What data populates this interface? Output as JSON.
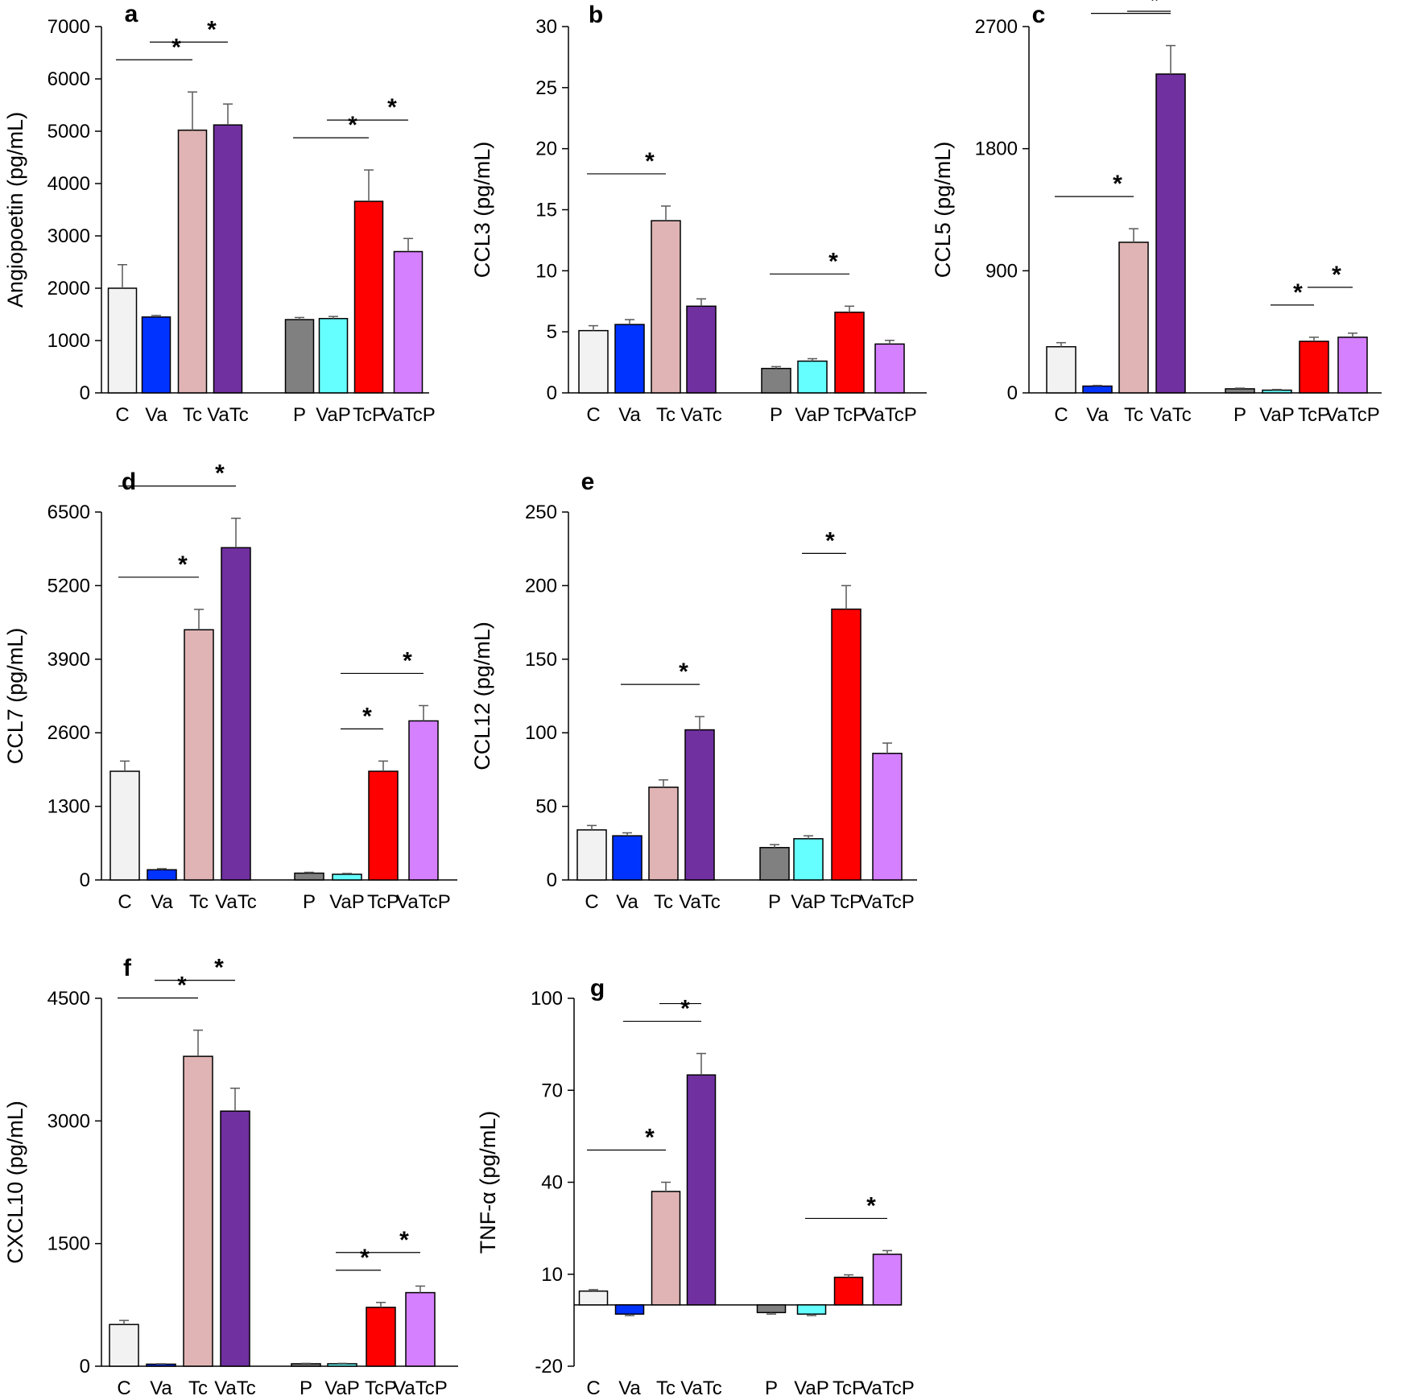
{
  "chart_data": [
    {
      "type": "bar",
      "panel": "a",
      "ylabel": "Angiopoetin (pg/mL)",
      "ylim": [
        0,
        7000
      ],
      "yticks": [
        0,
        1000,
        2000,
        3000,
        4000,
        5000,
        6000,
        7000
      ],
      "categories": [
        "C",
        "Va",
        "Tc",
        "VaTc",
        "P",
        "VaP",
        "TcP",
        "VaTcP"
      ],
      "values": [
        2000,
        1450,
        5020,
        5120,
        1400,
        1420,
        3660,
        2700
      ],
      "errors": [
        450,
        30,
        730,
        400,
        40,
        40,
        600,
        250
      ],
      "significance": [
        {
          "from": 0,
          "to": 2,
          "star": "*"
        },
        {
          "from": 1,
          "to": 3,
          "star": "*"
        },
        {
          "from": 4,
          "to": 6,
          "star": "*"
        },
        {
          "from": 5,
          "to": 7,
          "star": "*"
        }
      ]
    },
    {
      "type": "bar",
      "panel": "b",
      "ylabel": "CCL3 (pg/mL)",
      "ylim": [
        0,
        30
      ],
      "yticks": [
        0,
        5,
        10,
        15,
        20,
        25,
        30
      ],
      "categories": [
        "C",
        "Va",
        "Tc",
        "VaTc",
        "P",
        "VaP",
        "TcP",
        "VaTcP"
      ],
      "values": [
        5.1,
        5.6,
        14.1,
        7.1,
        2.0,
        2.6,
        6.6,
        4.0
      ],
      "errors": [
        0.4,
        0.4,
        1.2,
        0.6,
        0.15,
        0.2,
        0.5,
        0.3
      ],
      "significance": [
        {
          "from": 0,
          "to": 2,
          "star": "*"
        },
        {
          "from": 4,
          "to": 6,
          "star": "*"
        }
      ]
    },
    {
      "type": "bar",
      "panel": "c",
      "ylabel": "CCL5 (pg/mL)",
      "ylim": [
        0,
        2700
      ],
      "yticks": [
        0,
        900,
        1800,
        2700
      ],
      "categories": [
        "C",
        "Va",
        "Tc",
        "VaTc",
        "P",
        "VaP",
        "TcP",
        "VaTcP"
      ],
      "values": [
        340,
        50,
        1110,
        2350,
        30,
        20,
        380,
        410
      ],
      "errors": [
        30,
        5,
        100,
        210,
        5,
        5,
        30,
        30
      ],
      "significance": [
        {
          "from": 0,
          "to": 2,
          "star": "*"
        },
        {
          "from": 1,
          "to": 3,
          "star": "*"
        },
        {
          "from": 2,
          "to": 3,
          "star": ""
        },
        {
          "from": 5,
          "to": 6,
          "star": "*"
        },
        {
          "from": 6,
          "to": 7,
          "star": "*"
        }
      ]
    },
    {
      "type": "bar",
      "panel": "d",
      "ylabel": "CCL7 (pg/mL)",
      "ylim": [
        0,
        6500
      ],
      "yticks": [
        0,
        1300,
        2600,
        3900,
        5200,
        6500
      ],
      "categories": [
        "C",
        "Va",
        "Tc",
        "VaTc",
        "P",
        "VaP",
        "TcP",
        "VaTcP"
      ],
      "values": [
        1920,
        180,
        4420,
        5870,
        120,
        100,
        1920,
        2810
      ],
      "errors": [
        180,
        20,
        360,
        520,
        15,
        15,
        180,
        270
      ],
      "significance": [
        {
          "from": 0,
          "to": 2,
          "star": "*"
        },
        {
          "from": 0,
          "to": 3,
          "star": "*"
        },
        {
          "from": 5,
          "to": 6,
          "star": "*"
        },
        {
          "from": 5,
          "to": 7,
          "star": "*"
        }
      ]
    },
    {
      "type": "bar",
      "panel": "e",
      "ylabel": "CCL12 (pg/mL)",
      "ylim": [
        0,
        250
      ],
      "yticks": [
        0,
        50,
        100,
        150,
        200,
        250
      ],
      "categories": [
        "C",
        "Va",
        "Tc",
        "VaTc",
        "P",
        "VaP",
        "TcP",
        "VaTcP"
      ],
      "values": [
        34,
        30,
        63,
        102,
        22,
        28,
        184,
        86
      ],
      "errors": [
        3,
        2,
        5,
        9,
        2,
        2,
        16,
        7
      ],
      "significance": [
        {
          "from": 1,
          "to": 3,
          "star": "*"
        },
        {
          "from": 5,
          "to": 6,
          "star": "*"
        }
      ]
    },
    {
      "type": "bar",
      "panel": "f",
      "ylabel": "CXCL10 (pg/mL)",
      "ylim": [
        0,
        4500
      ],
      "yticks": [
        0,
        1500,
        3000,
        4500
      ],
      "categories": [
        "C",
        "Va",
        "Tc",
        "VaTc",
        "P",
        "VaP",
        "TcP",
        "VaTcP"
      ],
      "values": [
        510,
        25,
        3790,
        3120,
        30,
        30,
        720,
        900
      ],
      "errors": [
        50,
        5,
        320,
        280,
        5,
        5,
        60,
        80
      ],
      "significance": [
        {
          "from": 0,
          "to": 2,
          "star": "*"
        },
        {
          "from": 1,
          "to": 3,
          "star": "*"
        },
        {
          "from": 5,
          "to": 6,
          "star": "*"
        },
        {
          "from": 5,
          "to": 7,
          "star": "*"
        }
      ]
    },
    {
      "type": "bar",
      "panel": "g",
      "ylabel": "TNF-α (pg/mL)",
      "ylim": [
        -20,
        100
      ],
      "yticks": [
        -20,
        10,
        40,
        70,
        100
      ],
      "categories": [
        "C",
        "Va",
        "Tc",
        "VaTc",
        "P",
        "VaP",
        "TcP",
        "VaTcP"
      ],
      "values": [
        4.5,
        -3,
        37,
        75,
        -2.5,
        -3,
        9,
        16.5
      ],
      "errors": [
        0.5,
        0.5,
        3,
        7,
        0.5,
        0.5,
        0.8,
        1.2
      ],
      "significance": [
        {
          "from": 0,
          "to": 2,
          "star": "*"
        },
        {
          "from": 1,
          "to": 3,
          "star": "*"
        },
        {
          "from": 2,
          "to": 3,
          "star": ""
        },
        {
          "from": 5,
          "to": 7,
          "star": "*"
        }
      ]
    }
  ],
  "colors": {
    "C": "#f2f2f2",
    "Va": "#0033ff",
    "Tc": "#e0b4b4",
    "VaTc": "#7030a0",
    "P": "#808080",
    "VaP": "#66ffff",
    "TcP": "#ff0000",
    "VaTcP": "#d580ff"
  }
}
